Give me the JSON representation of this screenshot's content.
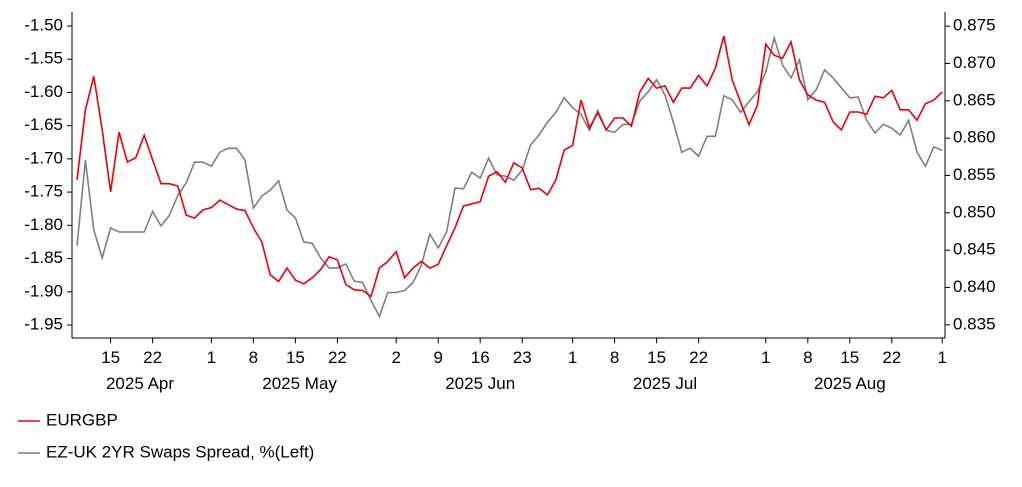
{
  "chart_data": {
    "type": "line",
    "x": [
      "2025-04-09",
      "2025-04-10",
      "2025-04-11",
      "2025-04-14",
      "2025-04-15",
      "2025-04-16",
      "2025-04-17",
      "2025-04-18",
      "2025-04-21",
      "2025-04-22",
      "2025-04-23",
      "2025-04-24",
      "2025-04-25",
      "2025-04-28",
      "2025-04-29",
      "2025-04-30",
      "2025-05-01",
      "2025-05-02",
      "2025-05-05",
      "2025-05-06",
      "2025-05-07",
      "2025-05-08",
      "2025-05-09",
      "2025-05-12",
      "2025-05-13",
      "2025-05-14",
      "2025-05-15",
      "2025-05-16",
      "2025-05-19",
      "2025-05-20",
      "2025-05-21",
      "2025-05-22",
      "2025-05-23",
      "2025-05-26",
      "2025-05-27",
      "2025-05-28",
      "2025-05-29",
      "2025-05-30",
      "2025-06-02",
      "2025-06-03",
      "2025-06-04",
      "2025-06-05",
      "2025-06-06",
      "2025-06-09",
      "2025-06-10",
      "2025-06-11",
      "2025-06-12",
      "2025-06-13",
      "2025-06-16",
      "2025-06-17",
      "2025-06-18",
      "2025-06-19",
      "2025-06-20",
      "2025-06-23",
      "2025-06-24",
      "2025-06-25",
      "2025-06-26",
      "2025-06-27",
      "2025-06-30",
      "2025-07-01",
      "2025-07-02",
      "2025-07-03",
      "2025-07-04",
      "2025-07-07",
      "2025-07-08",
      "2025-07-09",
      "2025-07-10",
      "2025-07-11",
      "2025-07-14",
      "2025-07-15",
      "2025-07-16",
      "2025-07-17",
      "2025-07-18",
      "2025-07-21",
      "2025-07-22",
      "2025-07-23",
      "2025-07-24",
      "2025-07-25",
      "2025-07-28",
      "2025-07-29",
      "2025-07-30",
      "2025-07-31",
      "2025-08-01",
      "2025-08-04",
      "2025-08-05",
      "2025-08-06",
      "2025-08-07",
      "2025-08-08",
      "2025-08-11",
      "2025-08-12",
      "2025-08-13",
      "2025-08-14",
      "2025-08-15",
      "2025-08-18",
      "2025-08-19",
      "2025-08-20",
      "2025-08-21",
      "2025-08-22",
      "2025-08-25",
      "2025-08-26",
      "2025-08-27",
      "2025-08-28",
      "2025-08-29",
      "2025-09-01"
    ],
    "series": [
      {
        "name": "EURGBP",
        "color": "#e8000b",
        "axis": "y2",
        "values": [
          0.8544,
          0.8638,
          0.8683,
          0.8611,
          0.8528,
          0.8608,
          0.8568,
          0.8574,
          0.8604,
          0.8571,
          0.8539,
          0.8539,
          0.8536,
          0.8497,
          0.8493,
          0.8504,
          0.8507,
          0.8517,
          0.8511,
          0.8505,
          0.8503,
          0.848,
          0.8461,
          0.8417,
          0.8408,
          0.8426,
          0.841,
          0.8405,
          0.8413,
          0.8424,
          0.8441,
          0.8437,
          0.8404,
          0.8397,
          0.8396,
          0.8388,
          0.8426,
          0.8435,
          0.8448,
          0.8413,
          0.8426,
          0.8435,
          0.8426,
          0.8431,
          0.8456,
          0.848,
          0.8509,
          0.8512,
          0.8515,
          0.8549,
          0.8555,
          0.8541,
          0.8567,
          0.856,
          0.8531,
          0.8533,
          0.8524,
          0.8544,
          0.8584,
          0.859,
          0.8651,
          0.8614,
          0.8634,
          0.8611,
          0.8627,
          0.8627,
          0.8616,
          0.8662,
          0.868,
          0.8667,
          0.867,
          0.8648,
          0.8667,
          0.8667,
          0.8684,
          0.867,
          0.8694,
          0.8737,
          0.8678,
          0.8648,
          0.8618,
          0.8644,
          0.8726,
          0.8711,
          0.8707,
          0.8729,
          0.8678,
          0.8658,
          0.8651,
          0.8648,
          0.8622,
          0.8611,
          0.8635,
          0.8635,
          0.8632,
          0.8656,
          0.8654,
          0.8664,
          0.8638,
          0.8638,
          0.8624,
          0.8646,
          0.8651,
          0.8662
        ]
      },
      {
        "name": "EZ-UK 2YR Swaps Spread, %(Left)",
        "color": "#7f7f7f",
        "values": [
          -1.831,
          -1.702,
          -1.807,
          -1.849,
          -1.804,
          -1.81,
          -1.81,
          -1.81,
          -1.81,
          -1.779,
          -1.801,
          -1.785,
          -1.755,
          -1.736,
          -1.705,
          -1.705,
          -1.711,
          -1.69,
          -1.684,
          -1.684,
          -1.702,
          -1.774,
          -1.756,
          -1.747,
          -1.733,
          -1.777,
          -1.789,
          -1.825,
          -1.827,
          -1.849,
          -1.864,
          -1.864,
          -1.858,
          -1.884,
          -1.886,
          -1.913,
          -1.937,
          -1.901,
          -1.901,
          -1.898,
          -1.886,
          -1.86,
          -1.813,
          -1.834,
          -1.81,
          -1.744,
          -1.745,
          -1.72,
          -1.729,
          -1.699,
          -1.724,
          -1.726,
          -1.732,
          -1.717,
          -1.679,
          -1.664,
          -1.645,
          -1.63,
          -1.608,
          -1.623,
          -1.633,
          -1.657,
          -1.627,
          -1.657,
          -1.66,
          -1.648,
          -1.648,
          -1.613,
          -1.599,
          -1.581,
          -1.604,
          -1.645,
          -1.69,
          -1.684,
          -1.696,
          -1.666,
          -1.666,
          -1.605,
          -1.611,
          -1.63,
          -1.614,
          -1.599,
          -1.569,
          -1.518,
          -1.559,
          -1.578,
          -1.551,
          -1.611,
          -1.596,
          -1.566,
          -1.578,
          -1.593,
          -1.608,
          -1.607,
          -1.642,
          -1.661,
          -1.648,
          -1.654,
          -1.664,
          -1.642,
          -1.69,
          -1.711,
          -1.682,
          -1.687
        ]
      }
    ],
    "ylim": [
      -1.97,
      -1.48
    ],
    "yticks": [
      {
        "value": -1.5,
        "label": "-1.50"
      },
      {
        "value": -1.55,
        "label": "-1.55"
      },
      {
        "value": -1.6,
        "label": "-1.60"
      },
      {
        "value": -1.65,
        "label": "-1.65"
      },
      {
        "value": -1.7,
        "label": "-1.70"
      },
      {
        "value": -1.75,
        "label": "-1.75"
      },
      {
        "value": -1.8,
        "label": "-1.80"
      },
      {
        "value": -1.85,
        "label": "-1.85"
      },
      {
        "value": -1.9,
        "label": "-1.90"
      },
      {
        "value": -1.95,
        "label": "-1.95"
      }
    ],
    "y2lim": [
      0.8332,
      0.8768
    ],
    "y2ticks": [
      0.875,
      {
        "value": 0.87,
        "label": "0.870"
      },
      0.865,
      {
        "value": 0.86,
        "label": "0.860"
      },
      0.855,
      {
        "value": 0.85,
        "label": "0.850"
      },
      0.845,
      {
        "value": 0.84,
        "label": "0.840"
      },
      0.835
    ],
    "xticks": [
      {
        "value": "2025-04-15",
        "label": "15"
      },
      {
        "value": "2025-04-22",
        "label": "22"
      },
      {
        "value": "2025-05-01",
        "label": "1"
      },
      {
        "value": "2025-05-08",
        "label": "8"
      },
      {
        "value": "2025-05-15",
        "label": "15"
      },
      {
        "value": "2025-05-22",
        "label": "22"
      },
      {
        "value": "2025-06-02",
        "label": "2"
      },
      {
        "value": "2025-06-09",
        "label": "9"
      },
      {
        "value": "2025-06-16",
        "label": "16"
      },
      {
        "value": "2025-06-23",
        "label": "23"
      },
      {
        "value": "2025-07-01",
        "label": "1"
      },
      {
        "value": "2025-07-08",
        "label": "8"
      },
      {
        "value": "2025-07-15",
        "label": "15"
      },
      {
        "value": "2025-07-22",
        "label": "22"
      },
      {
        "value": "2025-08-01",
        "label": "1"
      },
      {
        "value": "2025-08-08",
        "label": "8"
      },
      {
        "value": "2025-08-15",
        "label": "15"
      },
      {
        "value": "2025-08-22",
        "label": "22"
      },
      {
        "value": "2025-09-01",
        "label": "1"
      }
    ],
    "month_labels": [
      {
        "value": "2025-04",
        "label": "2025 Apr"
      },
      {
        "value": "2025-05",
        "label": "2025 May"
      },
      {
        "value": "2025-06",
        "label": "2025 Jun"
      },
      {
        "value": "2025-07",
        "label": "2025 Jul"
      },
      {
        "value": "2025-08",
        "label": "2025 Aug"
      }
    ]
  }
}
